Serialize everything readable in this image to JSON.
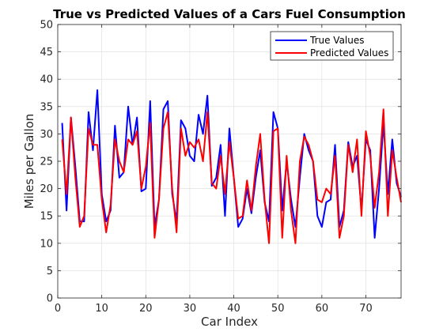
{
  "chart_data": {
    "type": "line",
    "title": "True vs Predicted Values of a Cars Fuel Consumption",
    "xlabel": "Car Index",
    "ylabel": "Miles per Gallon",
    "xlim": [
      0,
      78
    ],
    "ylim": [
      0,
      50
    ],
    "xticks": [
      0,
      10,
      20,
      30,
      40,
      50,
      60,
      70
    ],
    "yticks": [
      0,
      5,
      10,
      15,
      20,
      25,
      30,
      35,
      40,
      45,
      50
    ],
    "grid": true,
    "legend_position": "top-right",
    "x": [
      1,
      2,
      3,
      4,
      5,
      6,
      7,
      8,
      9,
      10,
      11,
      12,
      13,
      14,
      15,
      16,
      17,
      18,
      19,
      20,
      21,
      22,
      23,
      24,
      25,
      26,
      27,
      28,
      29,
      30,
      31,
      32,
      33,
      34,
      35,
      36,
      37,
      38,
      39,
      40,
      41,
      42,
      43,
      44,
      45,
      46,
      47,
      48,
      49,
      50,
      51,
      52,
      53,
      54,
      55,
      56,
      57,
      58,
      59,
      60,
      61,
      62,
      63,
      64,
      65,
      66,
      67,
      68,
      69,
      70,
      71,
      72,
      73,
      74,
      75,
      76,
      77,
      78
    ],
    "series": [
      {
        "name": "True Values",
        "color": "#0000ff",
        "values": [
          32,
          16,
          33,
          24,
          14,
          14,
          34,
          27,
          38,
          19,
          14,
          16,
          31.5,
          22,
          23,
          35,
          28,
          33,
          19.5,
          20,
          36,
          13,
          18,
          34.5,
          36,
          19,
          14,
          32.5,
          31,
          26,
          25,
          33.5,
          30,
          37,
          20.5,
          22,
          28,
          15,
          31,
          22,
          13,
          14.5,
          20,
          15.5,
          22,
          27,
          17.5,
          14,
          34,
          31,
          16,
          25,
          18,
          13,
          22,
          30,
          27,
          25,
          15,
          13,
          17.5,
          18,
          28,
          13,
          16,
          28.5,
          24,
          26,
          16,
          29,
          27,
          11,
          20,
          32,
          19,
          29,
          21,
          18.5
        ]
      },
      {
        "name": "Predicted Values",
        "color": "#ff0000",
        "values": [
          29,
          19,
          33,
          22,
          13,
          15,
          31,
          28,
          28,
          18,
          12,
          17,
          29,
          25,
          23,
          29,
          28,
          30.5,
          20,
          24,
          32,
          11,
          18,
          31,
          34,
          20,
          12,
          31,
          26,
          28.5,
          27.5,
          29,
          25,
          34,
          21,
          20,
          26,
          19,
          28.5,
          22,
          14.5,
          15,
          21.5,
          16,
          24,
          30,
          18,
          10,
          30.5,
          31,
          11,
          26,
          16,
          10,
          25,
          29.5,
          28,
          25,
          18,
          17.5,
          20,
          19,
          26,
          11,
          15,
          28,
          23,
          29,
          15,
          30.5,
          26,
          16.5,
          23,
          34.5,
          15,
          27,
          22,
          17.5
        ]
      }
    ]
  }
}
